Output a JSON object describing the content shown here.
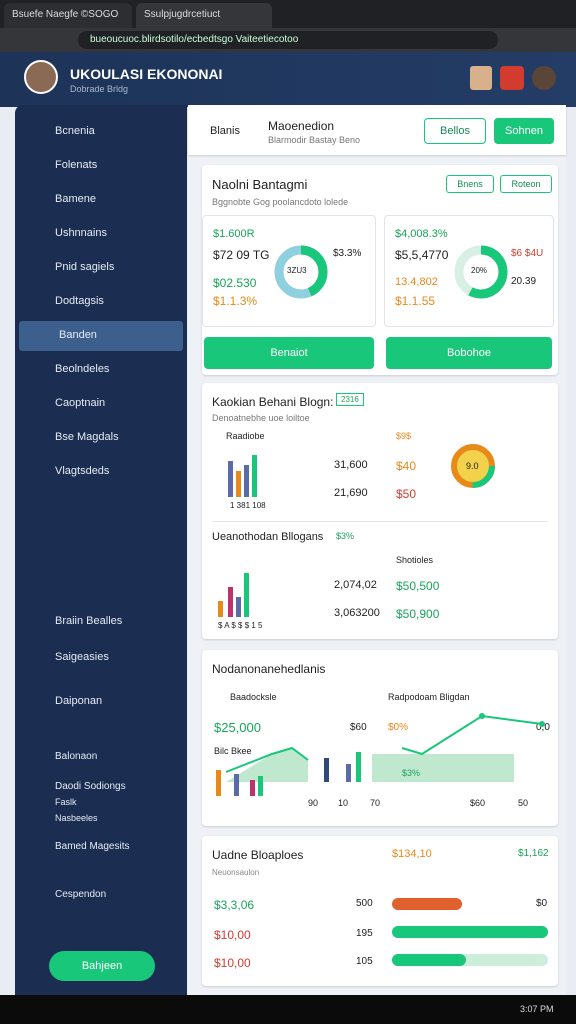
{
  "browser": {
    "tabs": [
      "Bsuefe Naegfe ©SOGO",
      "Ssulpjugdrcetiuct"
    ],
    "url": "bueoucuoc.blirdsotilo/ecbedtsgo Vaiteetiecotoo"
  },
  "header": {
    "title": "UKOULASI EKONONAI",
    "subtitle": "Dobrade Brldg"
  },
  "sidebar": {
    "items": [
      "Bcnenia",
      "Folenats",
      "Bamene",
      "Ushnnains",
      "Pnid sagiels",
      "Dodtagsis",
      "Banden",
      "Beolndeles",
      "Caoptnain",
      "Bse Magdals",
      "Vlagtsdeds"
    ],
    "lower": [
      "Braiin Bealles",
      "Saigeasies",
      "Daiponan",
      "Balonaon",
      "Daodi Sodiongs",
      "Faslk",
      "Nasbeeles",
      "Bamed Magesits",
      "Cespendon"
    ],
    "button": "Bahjeen"
  },
  "topbar": {
    "left": "Blanis",
    "title": "Maoenedion",
    "subtitle": "Blarmodir Bastay Beno",
    "buttons": [
      "Bellos",
      "Sohnen"
    ]
  },
  "card1": {
    "title": "Naolni Bantagmi",
    "subtitle": "Bggnobte Gog poolancdoto lolede",
    "buttons": [
      "Bnens",
      "Roteon"
    ],
    "left": {
      "lines": [
        "$1.600R",
        "$72 09 TG",
        "$02.530",
        "$1.1.3%"
      ],
      "donut": "3ZU3",
      "side": "$3.3%"
    },
    "right": {
      "lines": [
        "$4,008.3%",
        "$5,5,4770",
        "13.4,802",
        "$1.1.55"
      ],
      "donut": "20%",
      "side": [
        "$6 $4U",
        "20.39"
      ]
    },
    "actions": [
      "Benaiot",
      "Bobohoe"
    ]
  },
  "card2": {
    "title": "Kaokian Behani Blogn:",
    "badge": "2316",
    "subtitle": "Denoatnebhe uoe loiltoe",
    "legend": "Raadiobe",
    "head": "$9$",
    "rows": [
      [
        "31,600",
        "$40"
      ],
      [
        "21,690",
        "$50"
      ]
    ],
    "axis": "1 381 108",
    "donut": "9.0",
    "title2": "Ueanothodan Bllogans",
    "badge2": "$3%",
    "head2": "Shotioles",
    "rows2": [
      [
        "2,074,02",
        "$50,500"
      ],
      [
        "3,063200",
        "$50,900"
      ]
    ],
    "axis2": "$ A $ $ $ 1 5"
  },
  "card3": {
    "title": "Nodanonanehedlanis",
    "legend": "Baadocksle",
    "right": "Radpodoam Bligdan",
    "value": "$25,000",
    "side": [
      "$60",
      "$0%",
      "0,0"
    ],
    "sub": "Bilc Bkee",
    "badge": "$3%",
    "axis": [
      "90",
      "10",
      "70",
      "$60",
      "50"
    ]
  },
  "card4": {
    "title": "Uadne Bloaploes",
    "stats": [
      "$134,10",
      "$1,162"
    ],
    "sub": "Neuonsaulon",
    "rows": [
      [
        "$3,3,06",
        "500",
        "$0"
      ],
      [
        "$10,00",
        "195"
      ],
      [
        "$10,00",
        "105"
      ]
    ]
  },
  "taskbar": {
    "time": "3:07 PM"
  }
}
